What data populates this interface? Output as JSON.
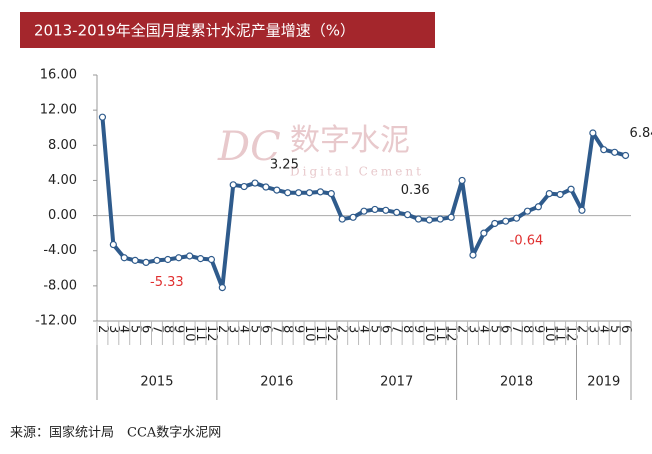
{
  "chart_data": {
    "type": "line",
    "title": "2013-2019年全国月度累计水泥产量增速（%）",
    "source": "来源：国家统计局　CCA数字水泥网",
    "watermark": [
      "DC",
      "数字水泥",
      "Digital Cement"
    ],
    "groups": [
      {
        "name": "2015",
        "categories": [
          "2",
          "3",
          "4",
          "5",
          "6",
          "7",
          "8",
          "9",
          "10",
          "11",
          "12"
        ]
      },
      {
        "name": "2016",
        "categories": [
          "2",
          "3",
          "4",
          "5",
          "6",
          "7",
          "8",
          "9",
          "10",
          "11",
          "12"
        ]
      },
      {
        "name": "2017",
        "categories": [
          "2",
          "3",
          "4",
          "5",
          "6",
          "7",
          "8",
          "9",
          "10",
          "11",
          "12"
        ]
      },
      {
        "name": "2018",
        "categories": [
          "2",
          "3",
          "4",
          "5",
          "6",
          "7",
          "8",
          "9",
          "10",
          "11",
          "12"
        ]
      },
      {
        "name": "2019",
        "categories": [
          "2",
          "3",
          "4",
          "5",
          "6"
        ]
      }
    ],
    "series": [
      {
        "color": "#2f5b8c",
        "values": [
          11.2,
          -3.3,
          -4.8,
          -5.1,
          -5.33,
          -5.1,
          -5.0,
          -4.8,
          -4.6,
          -4.9,
          -5.0,
          -8.2,
          3.5,
          3.3,
          3.7,
          3.25,
          2.9,
          2.6,
          2.6,
          2.6,
          2.7,
          2.5,
          -0.4,
          -0.2,
          0.5,
          0.7,
          0.6,
          0.36,
          0.1,
          -0.4,
          -0.5,
          -0.4,
          -0.2,
          4.0,
          -4.5,
          -2.0,
          -0.9,
          -0.64,
          -0.3,
          0.5,
          1.0,
          2.5,
          2.4,
          3.0,
          0.6,
          9.4,
          7.5,
          7.2,
          6.84
        ]
      }
    ],
    "data_labels": [
      {
        "index": 4,
        "color": "#e03030"
      },
      {
        "index": 15,
        "color": "#222222"
      },
      {
        "index": 27,
        "color": "#222222"
      },
      {
        "index": 37,
        "color": "#e03030"
      },
      {
        "index": 48,
        "color": "#222222"
      }
    ],
    "ylim": [
      -12,
      16
    ],
    "yticks": [
      {
        "value": -12,
        "label": "-12.00"
      },
      {
        "value": -8,
        "label": "-8.00"
      },
      {
        "value": -4,
        "label": "-4.00"
      },
      {
        "value": 0,
        "label": "0.00"
      },
      {
        "value": 4,
        "label": "4.00"
      },
      {
        "value": 8,
        "label": "8.00"
      },
      {
        "value": 12,
        "label": "12.00"
      },
      {
        "value": 16,
        "label": "16.00"
      }
    ],
    "grid": false
  }
}
